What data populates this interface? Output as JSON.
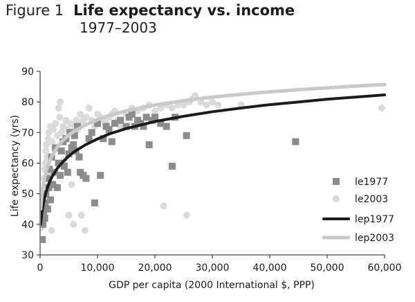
{
  "header": {
    "figure_label": "Figure 1",
    "title": "Life expectancy vs. income",
    "subtitle": "1977–2003"
  },
  "chart_data": {
    "type": "scatter",
    "title": "Life expectancy vs. income",
    "subtitle": "1977–2003",
    "xlabel": "GDP per capita (2000 International $, PPP)",
    "ylabel": "Life expectancy (yrs)",
    "xlim": [
      0,
      60000
    ],
    "ylim": [
      30,
      90
    ],
    "xticks": [
      0,
      10000,
      20000,
      30000,
      40000,
      50000,
      60000
    ],
    "xtick_labels": [
      "0",
      "10,000",
      "20,000",
      "30,000",
      "40,000",
      "50,000",
      "60,000"
    ],
    "yticks": [
      30,
      40,
      50,
      60,
      70,
      80,
      90
    ],
    "ytick_labels": [
      "30",
      "40",
      "50",
      "60",
      "70",
      "80",
      "90"
    ],
    "grid": false,
    "legend_position": "right",
    "series": [
      {
        "name": "le1977",
        "kind": "scatter",
        "marker": "square",
        "color": "#8c8c8c",
        "points": [
          [
            400,
            35
          ],
          [
            500,
            40
          ],
          [
            600,
            44
          ],
          [
            800,
            42
          ],
          [
            900,
            47
          ],
          [
            1000,
            50
          ],
          [
            1200,
            55
          ],
          [
            1300,
            45
          ],
          [
            1500,
            52
          ],
          [
            1600,
            58
          ],
          [
            1800,
            48
          ],
          [
            2000,
            62
          ],
          [
            2200,
            53
          ],
          [
            2500,
            57
          ],
          [
            2700,
            65
          ],
          [
            3000,
            52
          ],
          [
            3200,
            60
          ],
          [
            3500,
            56
          ],
          [
            3700,
            64
          ],
          [
            4000,
            67
          ],
          [
            4200,
            59
          ],
          [
            4500,
            68
          ],
          [
            4800,
            57
          ],
          [
            5000,
            63
          ],
          [
            5200,
            70
          ],
          [
            5500,
            65
          ],
          [
            5800,
            66
          ],
          [
            6000,
            69
          ],
          [
            6200,
            64
          ],
          [
            6500,
            72
          ],
          [
            6800,
            62
          ],
          [
            7000,
            57
          ],
          [
            7500,
            56
          ],
          [
            8000,
            55
          ],
          [
            8500,
            68
          ],
          [
            9000,
            70
          ],
          [
            9500,
            47
          ],
          [
            10000,
            73
          ],
          [
            10500,
            56
          ],
          [
            11000,
            68
          ],
          [
            11500,
            72
          ],
          [
            12000,
            71
          ],
          [
            12500,
            67
          ],
          [
            13000,
            73
          ],
          [
            14000,
            74
          ],
          [
            15000,
            72
          ],
          [
            15500,
            75
          ],
          [
            16000,
            76
          ],
          [
            16500,
            72
          ],
          [
            17000,
            74
          ],
          [
            17500,
            73
          ],
          [
            18000,
            72
          ],
          [
            18500,
            75
          ],
          [
            19000,
            66
          ],
          [
            19500,
            74
          ],
          [
            20000,
            75
          ],
          [
            21000,
            73
          ],
          [
            22000,
            72
          ],
          [
            23000,
            59
          ],
          [
            23500,
            75
          ],
          [
            25500,
            69
          ],
          [
            44500,
            67
          ]
        ]
      },
      {
        "name": "le2003",
        "kind": "scatter",
        "marker": "circle",
        "color": "#dadada",
        "points": [
          [
            300,
            39
          ],
          [
            400,
            42
          ],
          [
            500,
            45
          ],
          [
            600,
            50
          ],
          [
            700,
            55
          ],
          [
            800,
            58
          ],
          [
            900,
            60
          ],
          [
            1000,
            64
          ],
          [
            1100,
            66
          ],
          [
            1200,
            62
          ],
          [
            1400,
            68
          ],
          [
            1500,
            70
          ],
          [
            1600,
            56
          ],
          [
            1800,
            72
          ],
          [
            2000,
            38
          ],
          [
            2100,
            67
          ],
          [
            2300,
            71
          ],
          [
            2500,
            65
          ],
          [
            2700,
            73
          ],
          [
            3000,
            69
          ],
          [
            3200,
            78
          ],
          [
            3400,
            75
          ],
          [
            3500,
            80
          ],
          [
            3700,
            70
          ],
          [
            4000,
            72
          ],
          [
            4200,
            61
          ],
          [
            4500,
            74
          ],
          [
            4800,
            71
          ],
          [
            5000,
            43
          ],
          [
            5200,
            73
          ],
          [
            5500,
            53
          ],
          [
            5800,
            40
          ],
          [
            6000,
            72
          ],
          [
            6300,
            74
          ],
          [
            6500,
            71
          ],
          [
            6800,
            73
          ],
          [
            7000,
            76
          ],
          [
            7200,
            43
          ],
          [
            7500,
            74
          ],
          [
            7800,
            38
          ],
          [
            8000,
            75
          ],
          [
            8500,
            78
          ],
          [
            9000,
            74
          ],
          [
            9500,
            72
          ],
          [
            10000,
            76
          ],
          [
            10500,
            75
          ],
          [
            11000,
            74
          ],
          [
            11500,
            73
          ],
          [
            12000,
            75
          ],
          [
            12500,
            76
          ],
          [
            13000,
            77
          ],
          [
            13500,
            74
          ],
          [
            14000,
            72
          ],
          [
            15000,
            76
          ],
          [
            16000,
            78
          ],
          [
            17000,
            77
          ],
          [
            18000,
            78
          ],
          [
            19000,
            79
          ],
          [
            20000,
            77
          ],
          [
            21000,
            78
          ],
          [
            21500,
            46
          ],
          [
            22000,
            79
          ],
          [
            23000,
            78
          ],
          [
            24000,
            79
          ],
          [
            25000,
            79
          ],
          [
            25500,
            43
          ],
          [
            26000,
            80
          ],
          [
            26500,
            81
          ],
          [
            27000,
            82
          ],
          [
            28000,
            80
          ],
          [
            29000,
            79
          ],
          [
            30000,
            80
          ],
          [
            31000,
            79
          ],
          [
            35000,
            79
          ],
          [
            59500,
            78
          ]
        ]
      },
      {
        "name": "lep1977",
        "kind": "line",
        "color": "#1a1a1a",
        "width": 4,
        "points": [
          [
            100,
            40
          ],
          [
            300,
            43.6
          ],
          [
            600,
            47.1
          ],
          [
            1000,
            50.4
          ],
          [
            1500,
            53.2
          ],
          [
            2000,
            55.3
          ],
          [
            3000,
            58.3
          ],
          [
            4000,
            60.5
          ],
          [
            5000,
            62.3
          ],
          [
            6000,
            63.8
          ],
          [
            8000,
            66.1
          ],
          [
            10000,
            67.9
          ],
          [
            12000,
            69.5
          ],
          [
            15000,
            71.3
          ],
          [
            20000,
            73.6
          ],
          [
            25000,
            75.3
          ],
          [
            30000,
            76.8
          ],
          [
            35000,
            78
          ],
          [
            40000,
            79.1
          ],
          [
            45000,
            80
          ],
          [
            50000,
            80.9
          ],
          [
            55000,
            81.6
          ],
          [
            60000,
            82.3
          ]
        ]
      },
      {
        "name": "lep2003",
        "kind": "line",
        "color": "#c9c9c9",
        "width": 5,
        "points": [
          [
            100,
            45
          ],
          [
            300,
            49.5
          ],
          [
            600,
            53.5
          ],
          [
            1000,
            57
          ],
          [
            1500,
            60
          ],
          [
            2000,
            62.2
          ],
          [
            3000,
            65.3
          ],
          [
            4000,
            67.5
          ],
          [
            5000,
            69.2
          ],
          [
            6000,
            70.5
          ],
          [
            8000,
            72.6
          ],
          [
            10000,
            74.2
          ],
          [
            12000,
            75.5
          ],
          [
            15000,
            77.1
          ],
          [
            20000,
            79
          ],
          [
            25000,
            80.4
          ],
          [
            30000,
            81.6
          ],
          [
            35000,
            82.5
          ],
          [
            40000,
            83.3
          ],
          [
            45000,
            84
          ],
          [
            50000,
            84.6
          ],
          [
            55000,
            85.2
          ],
          [
            60000,
            85.7
          ]
        ]
      }
    ]
  }
}
